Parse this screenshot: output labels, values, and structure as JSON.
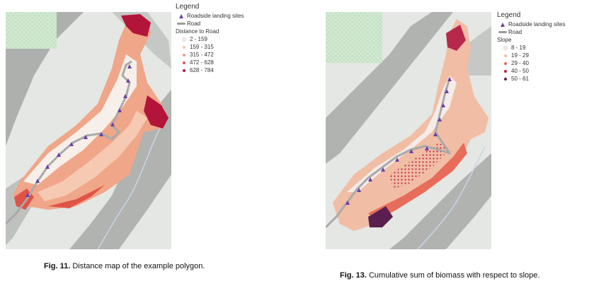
{
  "figures": [
    {
      "legend": {
        "title": "Legend",
        "sites_label": "Roadside landing sites",
        "road_label": "Road",
        "group_title": "Distance to Road",
        "classes": [
          {
            "label": "2 - 159",
            "color": "#f7efe9"
          },
          {
            "label": "159 - 315",
            "color": "#f6c9b3"
          },
          {
            "label": "315 - 472",
            "color": "#f09a7e"
          },
          {
            "label": "472 - 628",
            "color": "#df5448"
          },
          {
            "label": "628 - 784",
            "color": "#b3153a"
          }
        ]
      },
      "caption": {
        "number": "Fig. 11.",
        "text": "Distance map of the example polygon."
      }
    },
    {
      "legend": {
        "title": "Legend",
        "sites_label": "Roadside landing sites",
        "road_label": "Road",
        "group_title": "Slope",
        "classes": [
          {
            "label": "8 - 19",
            "color": "#f3ece8"
          },
          {
            "label": "19 - 29",
            "color": "#f1bda5"
          },
          {
            "label": "29 - 40",
            "color": "#e76d5a"
          },
          {
            "label": "40 - 50",
            "color": "#b8284b"
          },
          {
            "label": "50 - 61",
            "color": "#5a1f4e"
          }
        ]
      },
      "caption": {
        "number": "Fig. 13.",
        "text": "Cumulative sum of biomass with respect to slope."
      }
    }
  ],
  "colors": {
    "terrain_light": "#e4e7e3",
    "terrain_dark": "#9a9d9a",
    "park": "#cfe8cf",
    "road": "#a9a9a9",
    "site": "#6b3fa0"
  }
}
